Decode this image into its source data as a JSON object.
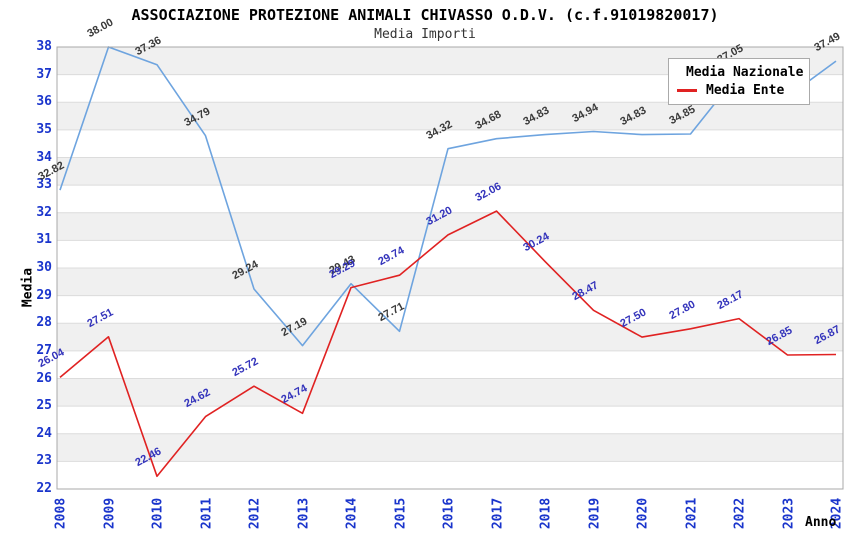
{
  "header": {
    "title": "ASSOCIAZIONE PROTEZIONE ANIMALI CHIVASSO O.D.V. (c.f.91019820017)",
    "subtitle": "Media Importi"
  },
  "colors": {
    "axis_ticks": "#1A35CC",
    "band_gray": "#F0F0F0",
    "band_white": "#FFFFFF",
    "gridline": "#DCDCDC",
    "plot_border": "#A8A8A8",
    "legend_border": "#AAAAAA",
    "title_text": "#000000",
    "subtitle_text": "#333333"
  },
  "chart_data": {
    "type": "line",
    "x": [
      2008,
      2009,
      2010,
      2011,
      2012,
      2013,
      2014,
      2015,
      2016,
      2017,
      2018,
      2019,
      2020,
      2021,
      2022,
      2023,
      2024
    ],
    "xlabel": "Anno",
    "ylabel": "Media",
    "ylim": [
      22,
      38
    ],
    "ytick_step": 1,
    "grid": "horizontal-bands-alternating",
    "legend_position": "top-right-inside",
    "series": [
      {
        "name": "Media Nazionale",
        "color": "#6EA4DF",
        "label_color": "#3A3A3A",
        "values": [
          32.82,
          38.0,
          37.36,
          34.79,
          29.24,
          27.19,
          29.43,
          27.71,
          34.32,
          34.68,
          34.83,
          34.94,
          34.83,
          34.85,
          37.05,
          36.2,
          37.49
        ],
        "labels": [
          "32.82",
          "38.00",
          "37.36",
          "34.79",
          "29.24",
          "27.19",
          "29.43",
          "27.71",
          "34.32",
          "34.68",
          "34.83",
          "34.94",
          "34.83",
          "34.85",
          "37.05",
          null,
          "37.49"
        ]
      },
      {
        "name": "Media Ente",
        "color": "#E02222",
        "label_color": "#3333BB",
        "values": [
          26.04,
          27.51,
          22.46,
          24.62,
          25.72,
          24.74,
          29.29,
          29.74,
          31.2,
          32.06,
          30.24,
          28.47,
          27.5,
          27.8,
          28.17,
          26.85,
          26.87
        ],
        "labels": [
          "26.04",
          "27.51",
          "22.46",
          "24.62",
          "25.72",
          "24.74",
          "29.29",
          "29.74",
          "31.20",
          "32.06",
          "30.24",
          "28.47",
          "27.50",
          "27.80",
          "28.17",
          "26.85",
          "26.87"
        ]
      }
    ]
  }
}
